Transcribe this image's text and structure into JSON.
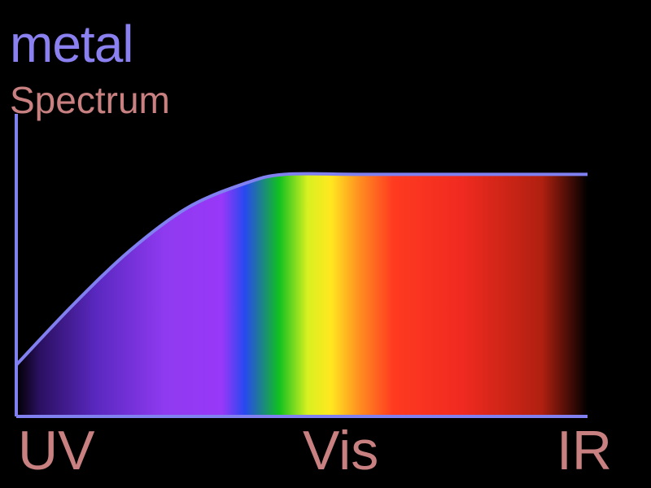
{
  "chart_data": {
    "type": "area",
    "title": "metal",
    "subtitle": "Spectrum",
    "xlabel": "",
    "ylabel": "",
    "x_tick_labels": [
      "UV",
      "Vis",
      "IR"
    ],
    "curve": [
      {
        "x": 0.0,
        "y": 0.17
      },
      {
        "x": 0.1,
        "y": 0.37
      },
      {
        "x": 0.2,
        "y": 0.55
      },
      {
        "x": 0.3,
        "y": 0.69
      },
      {
        "x": 0.4,
        "y": 0.77
      },
      {
        "x": 0.47,
        "y": 0.8
      },
      {
        "x": 0.6,
        "y": 0.8
      },
      {
        "x": 0.8,
        "y": 0.8
      },
      {
        "x": 1.0,
        "y": 0.8
      }
    ],
    "xlim": [
      0,
      1
    ],
    "ylim": [
      0,
      1
    ],
    "grid": false,
    "legend": "none"
  },
  "colors": {
    "background": "#000000",
    "axis": "#8080f0",
    "title": "#8a80f0",
    "labels": "#c88080",
    "spectrum": [
      "#000000",
      "#2a1060",
      "#5a28c0",
      "#8f3af0",
      "#9838f8",
      "#2848f0",
      "#10c020",
      "#d8f020",
      "#ffe820",
      "#ff9020",
      "#ff3a20",
      "#f02a20",
      "#b02010",
      "#000000"
    ]
  }
}
